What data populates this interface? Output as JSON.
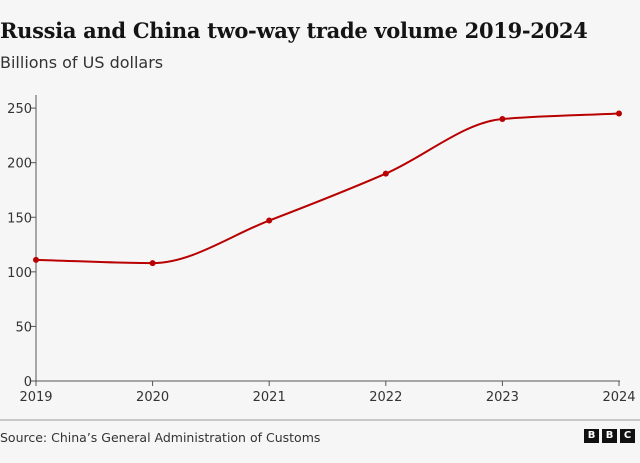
{
  "chart_data": {
    "type": "line",
    "title": "Russia and China two-way trade volume 2019-2024",
    "subtitle": "Billions of US dollars",
    "xlabel": "",
    "ylabel": "",
    "x": [
      "2019",
      "2020",
      "2021",
      "2022",
      "2023",
      "2024"
    ],
    "series": [
      {
        "values": [
          111,
          108,
          147,
          190,
          240,
          245
        ],
        "color": "#b80000"
      }
    ],
    "ylim": [
      0,
      262
    ],
    "yticks": [
      0,
      50,
      100,
      150,
      200,
      250
    ],
    "grid": false,
    "legend": "none",
    "source": "Source: China’s General Administration of Customs"
  },
  "logo": {
    "letters": [
      "B",
      "B",
      "C"
    ]
  }
}
